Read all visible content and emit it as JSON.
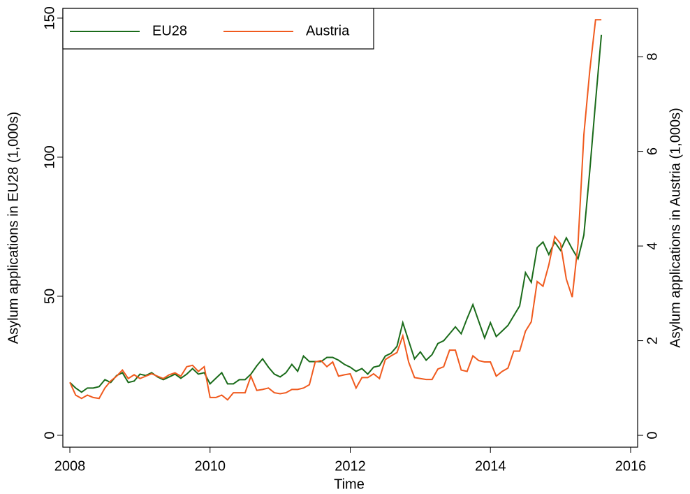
{
  "chart_data": {
    "type": "line",
    "x_label": "Time",
    "y_label": "Asylum applications in EU28 (1,000s)",
    "y2_label": "Asylum applications in Austria (1,000s)",
    "x": [
      2008,
      2008.083,
      2008.167,
      2008.25,
      2008.333,
      2008.417,
      2008.5,
      2008.583,
      2008.667,
      2008.75,
      2008.833,
      2008.917,
      2009,
      2009.083,
      2009.167,
      2009.25,
      2009.333,
      2009.417,
      2009.5,
      2009.583,
      2009.667,
      2009.75,
      2009.833,
      2009.917,
      2010,
      2010.083,
      2010.167,
      2010.25,
      2010.333,
      2010.417,
      2010.5,
      2010.583,
      2010.667,
      2010.75,
      2010.833,
      2010.917,
      2011,
      2011.083,
      2011.167,
      2011.25,
      2011.333,
      2011.417,
      2011.5,
      2011.583,
      2011.667,
      2011.75,
      2011.833,
      2011.917,
      2012,
      2012.083,
      2012.167,
      2012.25,
      2012.333,
      2012.417,
      2012.5,
      2012.583,
      2012.667,
      2012.75,
      2012.833,
      2012.917,
      2013,
      2013.083,
      2013.167,
      2013.25,
      2013.333,
      2013.417,
      2013.5,
      2013.583,
      2013.667,
      2013.75,
      2013.833,
      2013.917,
      2014,
      2014.083,
      2014.167,
      2014.25,
      2014.333,
      2014.417,
      2014.5,
      2014.583,
      2014.667,
      2014.75,
      2014.833,
      2014.917,
      2015,
      2015.083,
      2015.167,
      2015.25,
      2015.333,
      2015.417,
      2015.5,
      2015.583
    ],
    "series": [
      {
        "name": "EU28",
        "color": "#1a6b1a",
        "axis": "y",
        "values": [
          19,
          17,
          15.5,
          17,
          17,
          17.5,
          20,
          19,
          21.5,
          22.5,
          19,
          19.5,
          22,
          21.5,
          22.5,
          21,
          20,
          21,
          22,
          20.5,
          22,
          24,
          22,
          22.5,
          18.5,
          20.5,
          22.5,
          18.5,
          18.5,
          20,
          20,
          22,
          25,
          27.5,
          24.5,
          22,
          21,
          22.5,
          25.5,
          23,
          28.5,
          26.5,
          26.5,
          26.5,
          28,
          28,
          27,
          25.5,
          24.5,
          23,
          24,
          22,
          24.5,
          25,
          28.5,
          29.5,
          32,
          40.5,
          34,
          27.5,
          30,
          27,
          29,
          33,
          34,
          36.5,
          39,
          36.5,
          42,
          47,
          41,
          35,
          40.5,
          35.5,
          37.5,
          39.5,
          43,
          46.5,
          58.5,
          55,
          67.5,
          69.5,
          65,
          69.5,
          66.5,
          71,
          67,
          63.5,
          72,
          95,
          120,
          144
        ]
      },
      {
        "name": "Austria",
        "color": "#f05a1e",
        "axis": "y2",
        "values": [
          1.12,
          0.85,
          0.78,
          0.85,
          0.8,
          0.78,
          1.0,
          1.15,
          1.25,
          1.38,
          1.2,
          1.28,
          1.2,
          1.25,
          1.3,
          1.25,
          1.2,
          1.28,
          1.32,
          1.25,
          1.45,
          1.48,
          1.35,
          1.45,
          0.8,
          0.8,
          0.85,
          0.75,
          0.9,
          0.9,
          0.9,
          1.25,
          0.95,
          0.97,
          1.0,
          0.9,
          0.88,
          0.9,
          0.97,
          0.97,
          1.0,
          1.07,
          1.55,
          1.58,
          1.45,
          1.55,
          1.25,
          1.28,
          1.3,
          1.0,
          1.22,
          1.22,
          1.3,
          1.2,
          1.6,
          1.68,
          1.75,
          2.1,
          1.55,
          1.22,
          1.2,
          1.18,
          1.18,
          1.4,
          1.45,
          1.8,
          1.8,
          1.38,
          1.35,
          1.68,
          1.58,
          1.55,
          1.55,
          1.25,
          1.35,
          1.42,
          1.78,
          1.78,
          2.2,
          2.4,
          3.25,
          3.15,
          3.6,
          4.2,
          4.05,
          3.3,
          2.92,
          4.05,
          6.35,
          7.7,
          8.78,
          8.78
        ]
      }
    ],
    "xlim": [
      2007.9,
      2016.1
    ],
    "xticks": [
      2008,
      2010,
      2012,
      2014,
      2016
    ],
    "ylim": [
      -4.27,
      153.5
    ],
    "yticks": [
      0,
      50,
      100,
      150
    ],
    "y2lim": [
      -0.25,
      9.02
    ],
    "y2ticks": [
      0,
      2,
      4,
      6,
      8
    ],
    "legend": "top-left",
    "grid": false
  }
}
